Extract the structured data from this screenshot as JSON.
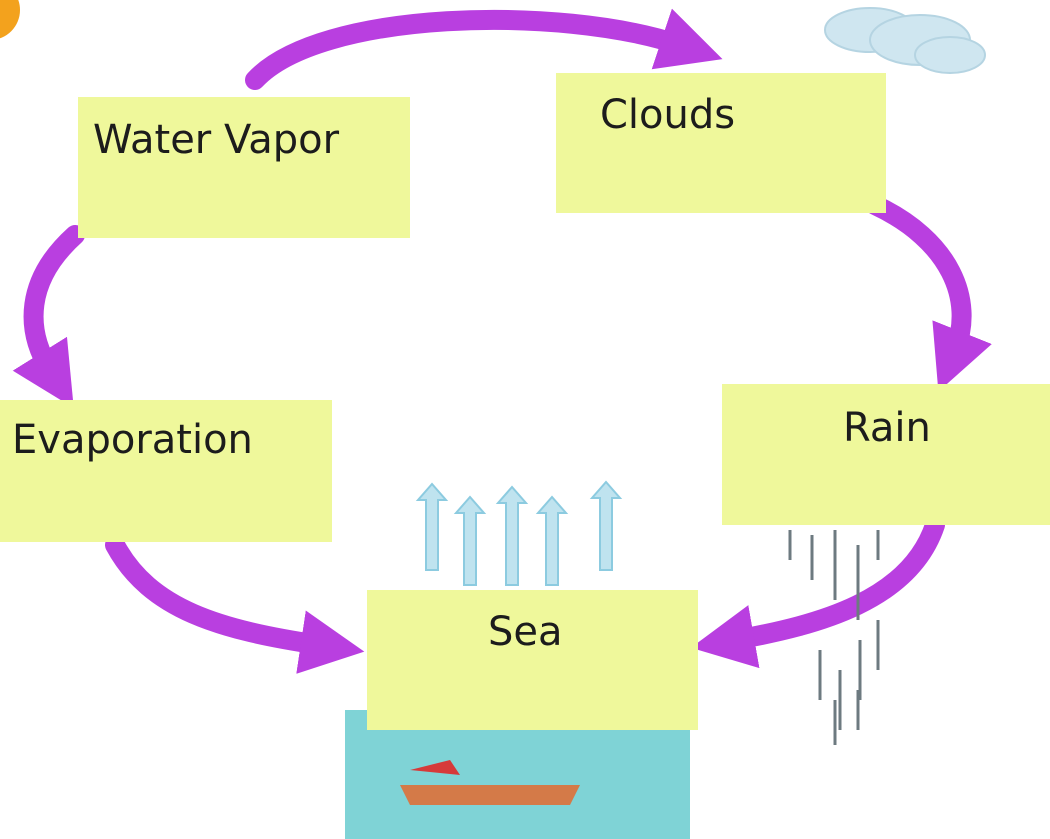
{
  "nodes": [
    {
      "label": "Water Vapor"
    },
    {
      "label": "Clouds"
    },
    {
      "label": "Rain"
    },
    {
      "label": "Sea"
    },
    {
      "label": "Evaporation"
    }
  ]
}
